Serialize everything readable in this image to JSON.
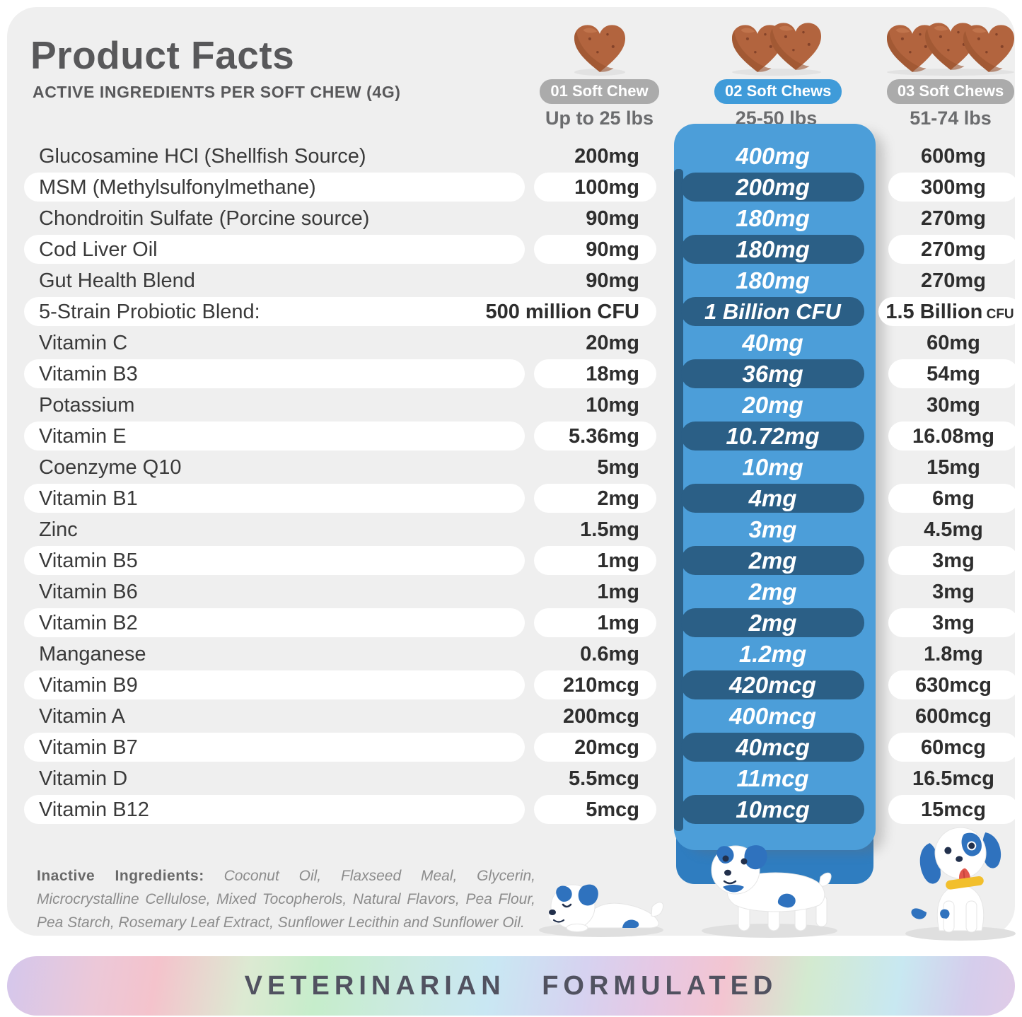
{
  "title": "Product Facts",
  "subtitle": "ACTIVE INGREDIENTS PER SOFT CHEW (4G)",
  "columns": [
    {
      "chews_label": "01 Soft Chew",
      "weight": "Up to 25 lbs",
      "chew_count": 1,
      "highlighted": false
    },
    {
      "chews_label": "02 Soft Chews",
      "weight": "25-50 lbs",
      "chew_count": 2,
      "highlighted": true
    },
    {
      "chews_label": "03 Soft Chews",
      "weight": "51-74 lbs",
      "chew_count": 3,
      "highlighted": false
    }
  ],
  "rows": [
    {
      "name": "Glucosamine HCl (Shellfish Source)",
      "v1": "200mg",
      "v2": "400mg",
      "v3": "600mg"
    },
    {
      "name": "MSM (Methylsulfonylmethane)",
      "v1": "100mg",
      "v2": "200mg",
      "v3": "300mg"
    },
    {
      "name": "Chondroitin Sulfate (Porcine source)",
      "v1": "90mg",
      "v2": "180mg",
      "v3": "270mg"
    },
    {
      "name": "Cod Liver Oil",
      "v1": "90mg",
      "v2": "180mg",
      "v3": "270mg"
    },
    {
      "name": "Gut Health Blend",
      "v1": "90mg",
      "v2": "180mg",
      "v3": "270mg"
    },
    {
      "name": "5-Strain Probiotic Blend:",
      "v1": "500 million CFU",
      "v2": "1 Billion CFU",
      "v3": "1.5 Billion",
      "v3_suffix": "CFU"
    },
    {
      "name": "Vitamin C",
      "v1": "20mg",
      "v2": "40mg",
      "v3": "60mg"
    },
    {
      "name": "Vitamin B3",
      "v1": "18mg",
      "v2": "36mg",
      "v3": "54mg"
    },
    {
      "name": "Potassium",
      "v1": "10mg",
      "v2": "20mg",
      "v3": "30mg"
    },
    {
      "name": "Vitamin E",
      "v1": "5.36mg",
      "v2": "10.72mg",
      "v3": "16.08mg"
    },
    {
      "name": "Coenzyme Q10",
      "v1": "5mg",
      "v2": "10mg",
      "v3": "15mg"
    },
    {
      "name": "Vitamin B1",
      "v1": "2mg",
      "v2": "4mg",
      "v3": "6mg"
    },
    {
      "name": "Zinc",
      "v1": "1.5mg",
      "v2": "3mg",
      "v3": "4.5mg"
    },
    {
      "name": "Vitamin B5",
      "v1": "1mg",
      "v2": "2mg",
      "v3": "3mg"
    },
    {
      "name": "Vitamin B6",
      "v1": "1mg",
      "v2": "2mg",
      "v3": "3mg"
    },
    {
      "name": "Vitamin B2",
      "v1": "1mg",
      "v2": "2mg",
      "v3": "3mg"
    },
    {
      "name": "Manganese",
      "v1": "0.6mg",
      "v2": "1.2mg",
      "v3": "1.8mg"
    },
    {
      "name": "Vitamin B9",
      "v1": "210mcg",
      "v2": "420mcg",
      "v3": "630mcg"
    },
    {
      "name": "Vitamin A",
      "v1": "200mcg",
      "v2": "400mcg",
      "v3": "600mcg"
    },
    {
      "name": "Vitamin B7",
      "v1": "20mcg",
      "v2": "40mcg",
      "v3": "60mcg"
    },
    {
      "name": "Vitamin D",
      "v1": "5.5mcg",
      "v2": "11mcg",
      "v3": "16.5mcg"
    },
    {
      "name": "Vitamin B12",
      "v1": "5mcg",
      "v2": "10mcg",
      "v3": "15mcg"
    }
  ],
  "inactive": {
    "label": "Inactive Ingredients:",
    "text": "Coconut Oil, Flaxseed Meal, Glycerin, Microcrystalline Cellulose, Mixed Tocopherols, Natural Flavors, Pea Flour, Pea Starch, Rosemary Leaf Extract, Sunflower Lecithin and Sunflower Oil."
  },
  "banner": {
    "text": "VETERINARIAN FORMULATED"
  },
  "colors": {
    "card_bg": "#EFEFEF",
    "highlight_column": "#4C9ED9",
    "highlight_dark_pill": "#2B5F86",
    "highlight_cap": "#2F7DC0",
    "header_pill_gray": "#ABABAB",
    "header_pill_blue": "#3F9BD9",
    "chew_brown": "#B2643E",
    "dog_blue": "#2F72BE",
    "collar_yellow": "#F2BF2C",
    "banner_text": "#515260"
  }
}
